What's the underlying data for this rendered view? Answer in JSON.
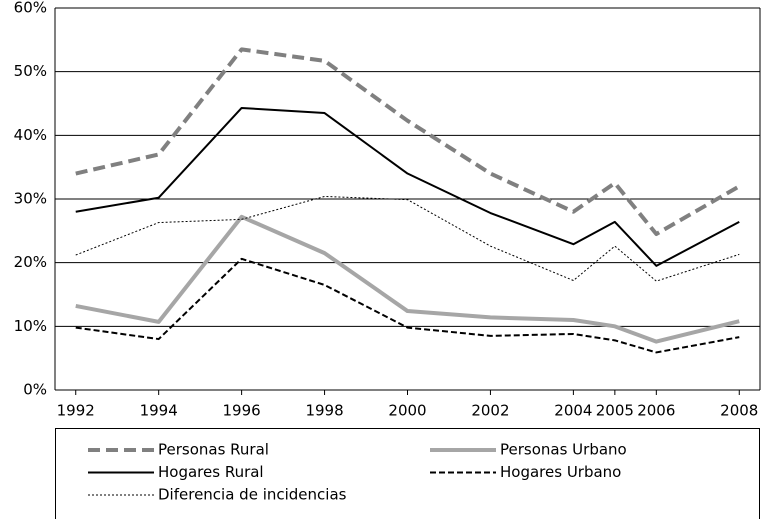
{
  "chart_data": {
    "type": "line",
    "x": [
      1992,
      1994,
      1996,
      1998,
      2000,
      2002,
      2004,
      2005,
      2006,
      2008
    ],
    "xlim": [
      1991.5,
      2008.5
    ],
    "xticks": [
      1992,
      1994,
      1996,
      1998,
      2000,
      2002,
      2004,
      2005,
      2006,
      2008
    ],
    "ylim": [
      0,
      60
    ],
    "yticks": [
      {
        "value": 0,
        "label": "0%"
      },
      {
        "value": 10,
        "label": "10%"
      },
      {
        "value": 20,
        "label": "20%"
      },
      {
        "value": 30,
        "label": "30%"
      },
      {
        "value": 40,
        "label": "40%"
      },
      {
        "value": 50,
        "label": "50%"
      },
      {
        "value": 60,
        "label": "60%"
      }
    ],
    "grid": true,
    "legend": "bottom",
    "series": [
      {
        "name": "Personas Rural",
        "color": "#808080",
        "style": "dashed",
        "line_width": 4,
        "values": [
          34,
          37,
          53.5,
          51.7,
          42.3,
          34,
          28,
          32.5,
          24.5,
          32
        ]
      },
      {
        "name": "Personas Urbano",
        "color": "#a6a6a6",
        "style": "solid",
        "line_width": 4,
        "values": [
          13.2,
          10.7,
          27.2,
          21.5,
          12.4,
          11.4,
          11,
          10,
          7.6,
          10.8
        ]
      },
      {
        "name": "Hogares Rural",
        "color": "#000000",
        "style": "solid",
        "line_width": 2,
        "values": [
          28,
          30.2,
          44.3,
          43.5,
          34,
          27.8,
          22.9,
          26.4,
          19.5,
          26.4
        ]
      },
      {
        "name": "Hogares Urbano",
        "color": "#000000",
        "style": "dashed",
        "line_width": 2,
        "values": [
          9.8,
          8,
          20.6,
          16.5,
          9.8,
          8.5,
          8.8,
          7.8,
          5.9,
          8.3
        ]
      },
      {
        "name": "Diferencia de incidencias",
        "color": "#000000",
        "style": "dotted",
        "line_width": 1,
        "values": [
          21.2,
          26.3,
          26.8,
          30.4,
          29.9,
          22.6,
          17.2,
          22.6,
          17.1,
          21.3
        ]
      }
    ]
  }
}
